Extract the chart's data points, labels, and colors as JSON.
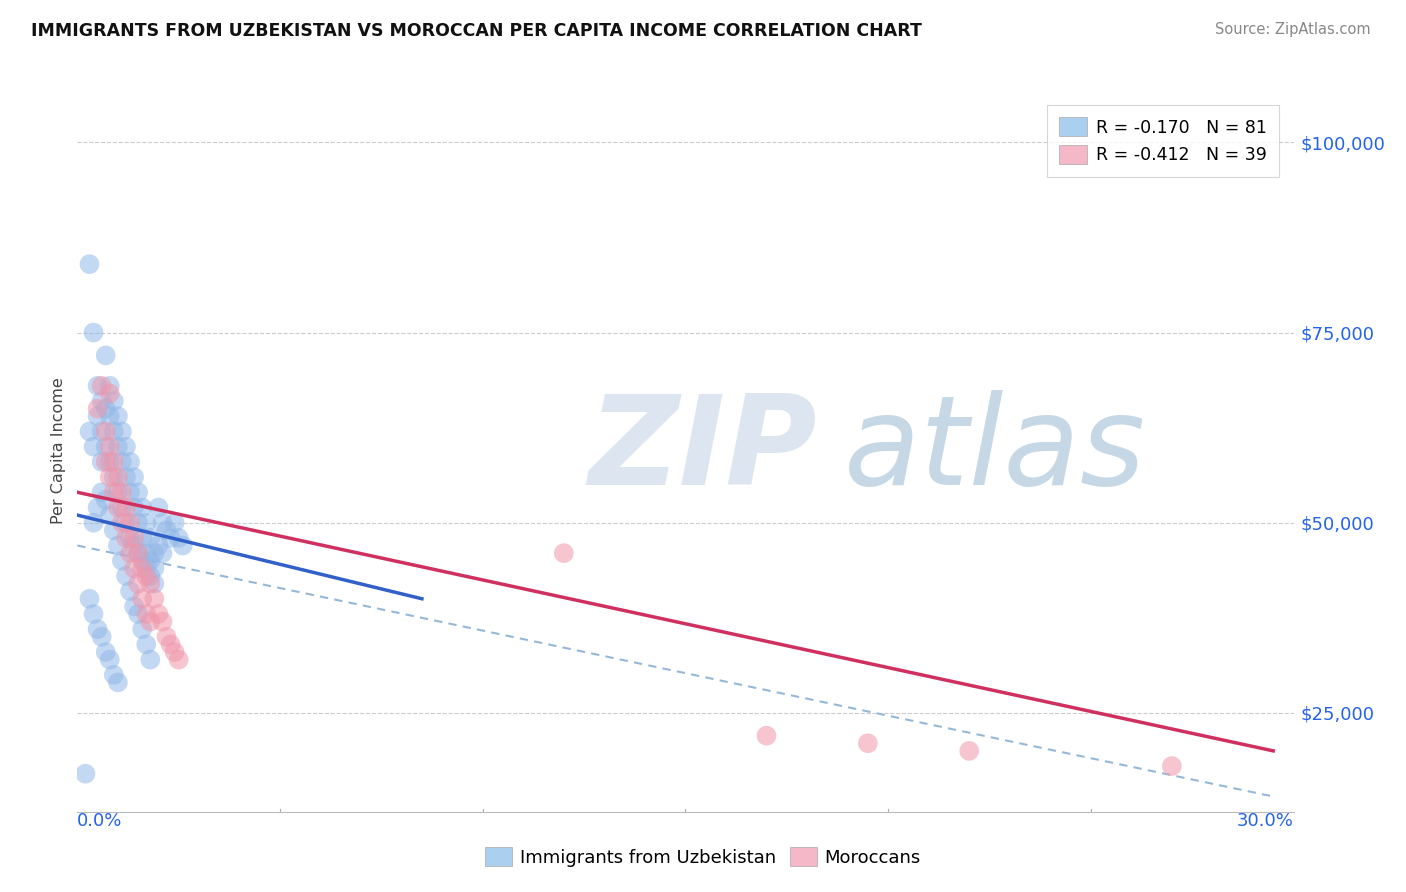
{
  "title": "IMMIGRANTS FROM UZBEKISTAN VS MOROCCAN PER CAPITA INCOME CORRELATION CHART",
  "source": "Source: ZipAtlas.com",
  "ylabel": "Per Capita Income",
  "y_ticks": [
    25000,
    50000,
    75000,
    100000
  ],
  "y_tick_labels": [
    "$25,000",
    "$50,000",
    "$75,000",
    "$100,000"
  ],
  "xlim": [
    0.0,
    0.3
  ],
  "ylim": [
    12000,
    107000
  ],
  "legend_entries": [
    {
      "label": "R = -0.170   N = 81",
      "color": "#aacfef"
    },
    {
      "label": "R = -0.412   N = 39",
      "color": "#f4b8c8"
    }
  ],
  "legend_label_uzbekistan": "Immigrants from Uzbekistan",
  "legend_label_moroccan": "Moroccans",
  "blue_color": "#92b8e8",
  "pink_color": "#f096aa",
  "trend_blue_color": "#3060c8",
  "trend_pink_color": "#d03060",
  "trend_dashed_color": "#96b8d8",
  "blue_scatter": [
    [
      0.003,
      84000
    ],
    [
      0.004,
      75000
    ],
    [
      0.005,
      68000
    ],
    [
      0.005,
      64000
    ],
    [
      0.006,
      66000
    ],
    [
      0.006,
      62000
    ],
    [
      0.006,
      58000
    ],
    [
      0.007,
      72000
    ],
    [
      0.007,
      65000
    ],
    [
      0.007,
      60000
    ],
    [
      0.008,
      68000
    ],
    [
      0.008,
      64000
    ],
    [
      0.008,
      58000
    ],
    [
      0.009,
      66000
    ],
    [
      0.009,
      62000
    ],
    [
      0.009,
      56000
    ],
    [
      0.01,
      64000
    ],
    [
      0.01,
      60000
    ],
    [
      0.01,
      54000
    ],
    [
      0.011,
      62000
    ],
    [
      0.011,
      58000
    ],
    [
      0.011,
      52000
    ],
    [
      0.012,
      60000
    ],
    [
      0.012,
      56000
    ],
    [
      0.012,
      50000
    ],
    [
      0.013,
      58000
    ],
    [
      0.013,
      54000
    ],
    [
      0.013,
      48000
    ],
    [
      0.014,
      56000
    ],
    [
      0.014,
      52000
    ],
    [
      0.014,
      47000
    ],
    [
      0.015,
      54000
    ],
    [
      0.015,
      50000
    ],
    [
      0.015,
      46000
    ],
    [
      0.016,
      52000
    ],
    [
      0.016,
      48000
    ],
    [
      0.016,
      45000
    ],
    [
      0.017,
      50000
    ],
    [
      0.017,
      46000
    ],
    [
      0.017,
      44000
    ],
    [
      0.018,
      48000
    ],
    [
      0.018,
      45000
    ],
    [
      0.018,
      43000
    ],
    [
      0.019,
      46000
    ],
    [
      0.019,
      44000
    ],
    [
      0.019,
      42000
    ],
    [
      0.02,
      52000
    ],
    [
      0.02,
      47000
    ],
    [
      0.021,
      50000
    ],
    [
      0.021,
      46000
    ],
    [
      0.022,
      49000
    ],
    [
      0.023,
      48000
    ],
    [
      0.024,
      50000
    ],
    [
      0.025,
      48000
    ],
    [
      0.026,
      47000
    ],
    [
      0.004,
      50000
    ],
    [
      0.005,
      52000
    ],
    [
      0.006,
      54000
    ],
    [
      0.007,
      53000
    ],
    [
      0.008,
      51000
    ],
    [
      0.009,
      49000
    ],
    [
      0.01,
      47000
    ],
    [
      0.011,
      45000
    ],
    [
      0.012,
      43000
    ],
    [
      0.013,
      41000
    ],
    [
      0.014,
      39000
    ],
    [
      0.015,
      38000
    ],
    [
      0.016,
      36000
    ],
    [
      0.017,
      34000
    ],
    [
      0.018,
      32000
    ],
    [
      0.003,
      40000
    ],
    [
      0.004,
      38000
    ],
    [
      0.005,
      36000
    ],
    [
      0.006,
      35000
    ],
    [
      0.007,
      33000
    ],
    [
      0.008,
      32000
    ],
    [
      0.009,
      30000
    ],
    [
      0.01,
      29000
    ],
    [
      0.003,
      62000
    ],
    [
      0.004,
      60000
    ],
    [
      0.002,
      17000
    ]
  ],
  "pink_scatter": [
    [
      0.005,
      65000
    ],
    [
      0.006,
      68000
    ],
    [
      0.007,
      62000
    ],
    [
      0.007,
      58000
    ],
    [
      0.008,
      60000
    ],
    [
      0.008,
      56000
    ],
    [
      0.009,
      58000
    ],
    [
      0.009,
      54000
    ],
    [
      0.01,
      56000
    ],
    [
      0.01,
      52000
    ],
    [
      0.011,
      54000
    ],
    [
      0.011,
      50000
    ],
    [
      0.012,
      52000
    ],
    [
      0.012,
      48000
    ],
    [
      0.013,
      50000
    ],
    [
      0.013,
      46000
    ],
    [
      0.014,
      48000
    ],
    [
      0.014,
      44000
    ],
    [
      0.015,
      46000
    ],
    [
      0.015,
      42000
    ],
    [
      0.016,
      44000
    ],
    [
      0.016,
      40000
    ],
    [
      0.017,
      43000
    ],
    [
      0.017,
      38000
    ],
    [
      0.018,
      42000
    ],
    [
      0.018,
      37000
    ],
    [
      0.019,
      40000
    ],
    [
      0.02,
      38000
    ],
    [
      0.021,
      37000
    ],
    [
      0.022,
      35000
    ],
    [
      0.023,
      34000
    ],
    [
      0.024,
      33000
    ],
    [
      0.025,
      32000
    ],
    [
      0.008,
      67000
    ],
    [
      0.12,
      46000
    ],
    [
      0.17,
      22000
    ],
    [
      0.195,
      21000
    ],
    [
      0.22,
      20000
    ],
    [
      0.27,
      18000
    ]
  ],
  "blue_trend_x": [
    0.0,
    0.085
  ],
  "blue_trend_y": [
    51000,
    40000
  ],
  "pink_trend_x": [
    0.0,
    0.295
  ],
  "pink_trend_y": [
    54000,
    20000
  ],
  "dashed_trend_x": [
    0.0,
    0.295
  ],
  "dashed_trend_y": [
    47000,
    14000
  ]
}
